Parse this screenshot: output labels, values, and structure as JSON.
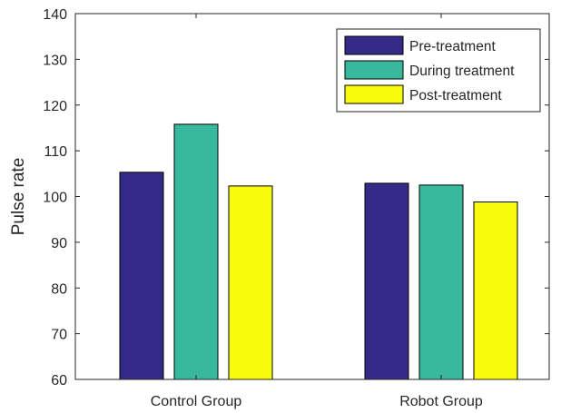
{
  "chart_data": {
    "type": "bar",
    "title": "",
    "xlabel": "",
    "ylabel": "Pulse rate",
    "categories": [
      "Control Group",
      "Robot Group"
    ],
    "series": [
      {
        "name": "Pre-treatment",
        "values": [
          105.3,
          102.9
        ],
        "color": "#352a87"
      },
      {
        "name": "During treatment",
        "values": [
          115.8,
          102.5
        ],
        "color": "#38b99e"
      },
      {
        "name": "Post-treatment",
        "values": [
          102.3,
          98.8
        ],
        "color": "#f9fb0e"
      }
    ],
    "ylim": [
      60,
      140
    ],
    "yticks": [
      "60",
      "70",
      "80",
      "90",
      "100",
      "110",
      "120",
      "130",
      "140"
    ],
    "grid": false,
    "legend_position": "top-right"
  }
}
